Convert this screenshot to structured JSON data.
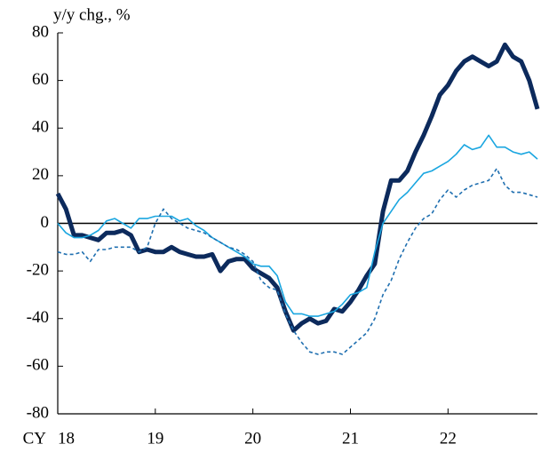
{
  "chart_data": {
    "type": "line",
    "ylabel": "y/y chg., %",
    "xlabel": "CY",
    "categories": [
      "18",
      null,
      null,
      null,
      null,
      null,
      null,
      null,
      null,
      null,
      null,
      null,
      "19",
      null,
      null,
      null,
      null,
      null,
      null,
      null,
      null,
      null,
      null,
      null,
      "20",
      null,
      null,
      null,
      null,
      null,
      null,
      null,
      null,
      null,
      null,
      null,
      "21",
      null,
      null,
      null,
      null,
      null,
      null,
      null,
      null,
      null,
      null,
      null,
      "22",
      null,
      null,
      null,
      null,
      null,
      null,
      null,
      null,
      null,
      null,
      null
    ],
    "series": [
      {
        "color": "#0c2a5c",
        "width": 5,
        "dashed": false,
        "values": [
          12.5,
          6,
          -5,
          -5,
          -6,
          -7,
          -4,
          -4,
          -3,
          -5,
          -12,
          -11,
          -12,
          -12,
          -10,
          -12,
          -13,
          -14,
          -14,
          -13,
          -20,
          -16,
          -15,
          -15,
          -19,
          -21,
          -23,
          -27,
          -37,
          -45,
          -42,
          -40,
          -42,
          -41,
          -36,
          -37,
          -33,
          -28,
          -22,
          -17,
          5,
          18,
          18,
          22,
          30,
          37,
          45,
          54,
          58,
          64,
          68,
          70,
          68,
          66,
          68,
          75,
          70,
          68,
          60,
          48
        ]
      },
      {
        "color": "#1aa6e0",
        "width": 1.6,
        "dashed": false,
        "values": [
          0,
          -4,
          -6,
          -6,
          -5,
          -3,
          1,
          2,
          0,
          -2,
          2,
          2,
          3,
          3,
          3,
          1,
          2,
          -1,
          -3,
          -6,
          -8,
          -10,
          -12,
          -14,
          -17,
          -18,
          -18,
          -22,
          -33,
          -38,
          -38,
          -39,
          -39,
          -38,
          -37,
          -34,
          -30,
          -29,
          -27,
          -12,
          0,
          5,
          10,
          13,
          17,
          21,
          22,
          24,
          26,
          29,
          33,
          31,
          32,
          37,
          32,
          32,
          30,
          29,
          30,
          27
        ]
      },
      {
        "color": "#1f6fb0",
        "width": 1.6,
        "dashed": true,
        "values": [
          -12,
          -13,
          -13,
          -12,
          -16,
          -11,
          -11,
          -10,
          -10,
          -10,
          -12,
          -10,
          0,
          6,
          2,
          0,
          -2,
          -3,
          -4,
          -6,
          -8,
          -10,
          -11,
          -13,
          -16,
          -24,
          -27,
          -28,
          -38,
          -45,
          -50,
          -54,
          -55,
          -54,
          -54,
          -55,
          -52,
          -49,
          -46,
          -40,
          -30,
          -24,
          -15,
          -8,
          -2,
          2,
          4,
          10,
          14,
          11,
          14,
          16,
          17,
          18,
          23,
          16,
          13,
          13,
          12,
          11
        ]
      }
    ],
    "ylim": [
      -80,
      80
    ],
    "yticks": [
      -80,
      -60,
      -40,
      -20,
      0,
      20,
      40,
      60,
      80
    ],
    "hline": 0
  }
}
